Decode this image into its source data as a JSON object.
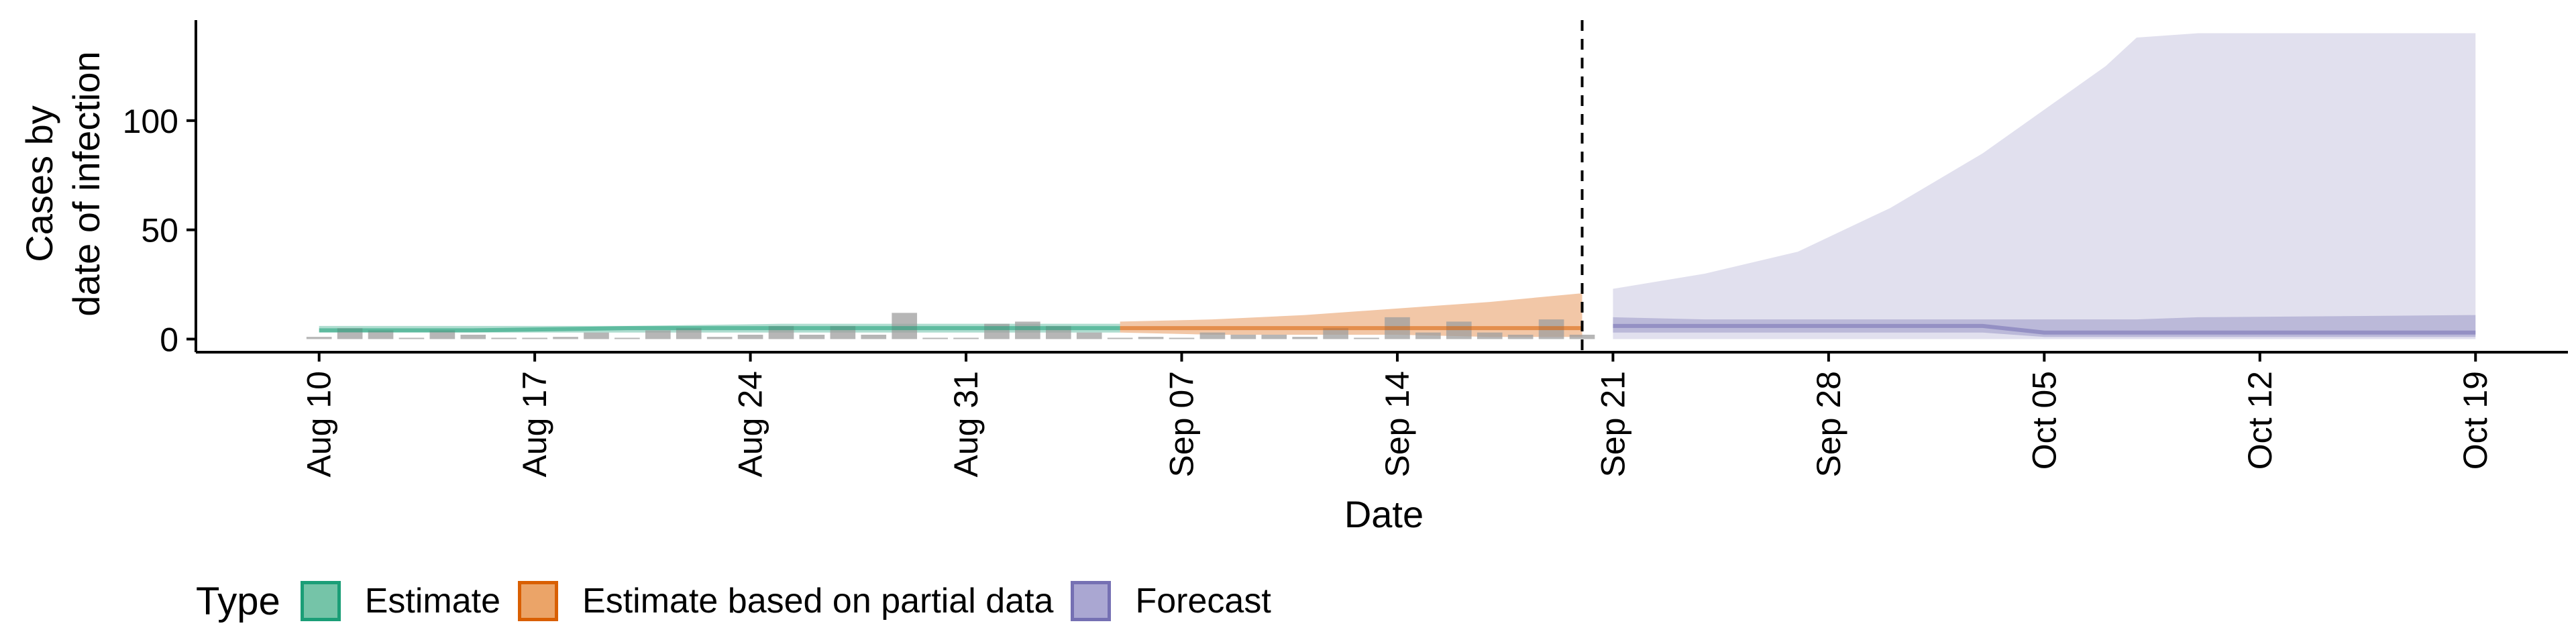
{
  "chart_data": {
    "type": "area",
    "title": "",
    "xlabel": "Date",
    "ylabel_lines": [
      "Cases by",
      "date of infection"
    ],
    "ylim": [
      -6,
      146
    ],
    "yticks": [
      0,
      50,
      100
    ],
    "x_start": "Aug 05",
    "x_end": "Oct 22",
    "xticks": [
      "Aug 10",
      "Aug 17",
      "Aug 24",
      "Aug 31",
      "Sep 07",
      "Sep 14",
      "Sep 21",
      "Sep 28",
      "Oct 05",
      "Oct 12",
      "Oct 19"
    ],
    "xtick_days": [
      5,
      12,
      19,
      26,
      33,
      40,
      47,
      54,
      61,
      68,
      75
    ],
    "vline_day": 46,
    "colors": {
      "estimate": "#1b9e77",
      "partial": "#d95f02",
      "forecast": "#7570b3",
      "observed_bars": "#9e9e9e"
    },
    "legend": {
      "title": "Type",
      "items": [
        {
          "label": "Estimate",
          "fill": "#75c4a8",
          "border": "#1b9e77"
        },
        {
          "label": "Estimate based on partial data",
          "fill": "#eba468",
          "border": "#d95f02"
        },
        {
          "label": "Forecast",
          "fill": "#aaa7d2",
          "border": "#7570b3"
        }
      ]
    },
    "observed": [
      {
        "day": 5,
        "cases": 1
      },
      {
        "day": 6,
        "cases": 5
      },
      {
        "day": 7,
        "cases": 4
      },
      {
        "day": 8,
        "cases": 0
      },
      {
        "day": 9,
        "cases": 4
      },
      {
        "day": 10,
        "cases": 2
      },
      {
        "day": 11,
        "cases": 0
      },
      {
        "day": 12,
        "cases": 0
      },
      {
        "day": 13,
        "cases": 1
      },
      {
        "day": 14,
        "cases": 3
      },
      {
        "day": 15,
        "cases": 0
      },
      {
        "day": 16,
        "cases": 4
      },
      {
        "day": 17,
        "cases": 5
      },
      {
        "day": 18,
        "cases": 1
      },
      {
        "day": 19,
        "cases": 2
      },
      {
        "day": 20,
        "cases": 6
      },
      {
        "day": 21,
        "cases": 2
      },
      {
        "day": 22,
        "cases": 6
      },
      {
        "day": 23,
        "cases": 2
      },
      {
        "day": 24,
        "cases": 12
      },
      {
        "day": 25,
        "cases": 0
      },
      {
        "day": 26,
        "cases": 0
      },
      {
        "day": 27,
        "cases": 7
      },
      {
        "day": 28,
        "cases": 8
      },
      {
        "day": 29,
        "cases": 6
      },
      {
        "day": 30,
        "cases": 3
      },
      {
        "day": 31,
        "cases": 0
      },
      {
        "day": 32,
        "cases": 1
      },
      {
        "day": 33,
        "cases": 0
      },
      {
        "day": 34,
        "cases": 3
      },
      {
        "day": 35,
        "cases": 2
      },
      {
        "day": 36,
        "cases": 2
      },
      {
        "day": 37,
        "cases": 1
      },
      {
        "day": 38,
        "cases": 5
      },
      {
        "day": 39,
        "cases": 0
      },
      {
        "day": 40,
        "cases": 10
      },
      {
        "day": 41,
        "cases": 3
      },
      {
        "day": 42,
        "cases": 8
      },
      {
        "day": 43,
        "cases": 3
      },
      {
        "day": 44,
        "cases": 2
      },
      {
        "day": 45,
        "cases": 9
      },
      {
        "day": 46,
        "cases": 2
      }
    ],
    "series": [
      {
        "name": "Estimate",
        "x": [
          5,
          10,
          15,
          20,
          25,
          30,
          31
        ],
        "lower": [
          3,
          3,
          3,
          3,
          3,
          3,
          3
        ],
        "upper": [
          6,
          6,
          6,
          7,
          7,
          7,
          7
        ],
        "median": [
          4,
          4,
          5,
          5,
          5,
          5,
          5
        ]
      },
      {
        "name": "Estimate based on partial data",
        "x": [
          31,
          34,
          37,
          40,
          43,
          46
        ],
        "lower": [
          3,
          2,
          2,
          2,
          1,
          1
        ],
        "upper": [
          8,
          9,
          11,
          14,
          17,
          21
        ],
        "median": [
          5,
          5,
          5,
          5,
          5,
          5
        ]
      },
      {
        "name": "Forecast",
        "x": [
          47,
          50,
          53,
          56,
          59,
          61,
          62,
          63,
          64,
          66,
          75
        ],
        "lower": [
          0,
          0,
          0,
          0,
          0,
          0,
          0,
          0,
          0,
          0,
          0
        ],
        "upper": [
          23,
          30,
          40,
          60,
          85,
          105,
          115,
          125,
          138,
          140,
          140
        ],
        "lower_inner": [
          3,
          3,
          3,
          3,
          3,
          1,
          1,
          1,
          1,
          1,
          1
        ],
        "upper_inner": [
          10,
          9,
          9,
          9,
          9,
          9,
          9,
          9,
          9,
          10,
          11
        ],
        "median": [
          6,
          6,
          6,
          6,
          6,
          3,
          3,
          3,
          3,
          3,
          3
        ]
      }
    ]
  }
}
